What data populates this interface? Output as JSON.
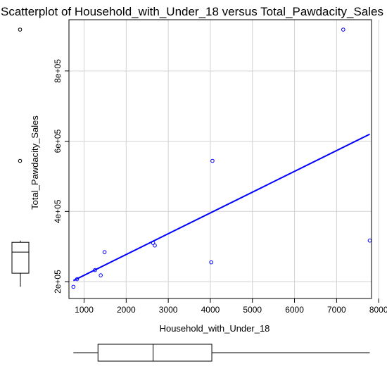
{
  "chart_data": {
    "type": "scatter",
    "title": "Scatterplot of Household_with_Under_18 versus Total_Pawdacity_Sales",
    "xlabel": "Household_with_Under_18",
    "ylabel": "Total_Pawdacity_Sales",
    "xlim": [
      640,
      7830
    ],
    "ylim": [
      152000,
      946000
    ],
    "x_ticks": [
      1000,
      2000,
      3000,
      4000,
      5000,
      6000,
      7000,
      8000
    ],
    "y_ticks": [
      200000,
      400000,
      600000,
      800000
    ],
    "y_tick_labels": [
      "2e+05",
      "4e+05",
      "6e+05",
      "8e+05"
    ],
    "grid": true,
    "points": [
      {
        "x": 746,
        "y": 185328
      },
      {
        "x": 832,
        "y": 207000
      },
      {
        "x": 1260,
        "y": 233000
      },
      {
        "x": 1395,
        "y": 218000
      },
      {
        "x": 1486,
        "y": 284000
      },
      {
        "x": 2640,
        "y": 310000
      },
      {
        "x": 2680,
        "y": 303000
      },
      {
        "x": 4020,
        "y": 255000
      },
      {
        "x": 4050,
        "y": 544000
      },
      {
        "x": 7158,
        "y": 917892
      },
      {
        "x": 7788,
        "y": 317000
      }
    ],
    "fit_line": {
      "x": [
        746,
        7788
      ],
      "y": [
        203000,
        620000
      ],
      "color": "#0000ff"
    },
    "point_color": "#0000ff",
    "marginal_boxplot_x": {
      "min": 746,
      "q1": 1330,
      "median": 2640,
      "q3": 4035,
      "max": 7788
    },
    "marginal_boxplot_y": {
      "min": 185328,
      "q1": 224000,
      "median": 284000,
      "q3": 312000,
      "max": 317000,
      "outliers": [
        544000,
        917892
      ]
    }
  }
}
